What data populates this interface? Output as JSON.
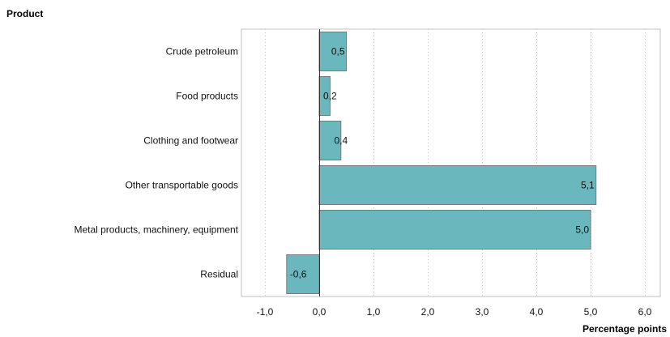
{
  "chart_data": {
    "type": "bar",
    "orientation": "horizontal",
    "ylabel": "Product",
    "xlabel": "Percentage points",
    "categories": [
      "Crude petroleum",
      "Food products",
      "Clothing and footwear",
      "Other transportable goods",
      "Metal products, machinery, equipment",
      "Residual"
    ],
    "values": [
      0.5,
      0.2,
      0.4,
      5.1,
      5.0,
      -0.6
    ],
    "value_labels": [
      "0,5",
      "0,2",
      "0,4",
      "5,1",
      "5,0",
      "-0,6"
    ],
    "xlim": [
      -1.5,
      6.3
    ],
    "xticks": [
      -1.0,
      0.0,
      1.0,
      2.0,
      3.0,
      4.0,
      5.0,
      6.0
    ],
    "xtick_labels": [
      "-1,0",
      "0,0",
      "1,0",
      "2,0",
      "3,0",
      "4,0",
      "5,0",
      "6,0"
    ],
    "grid": "vertical dotted",
    "legend": "none",
    "colors": {
      "bar_fill": "#6ab8be",
      "bar_stroke": "#7a7a7a",
      "grid": "#c8c8c8",
      "frame": "#c0c0c0",
      "zero_line": "#333333"
    }
  }
}
